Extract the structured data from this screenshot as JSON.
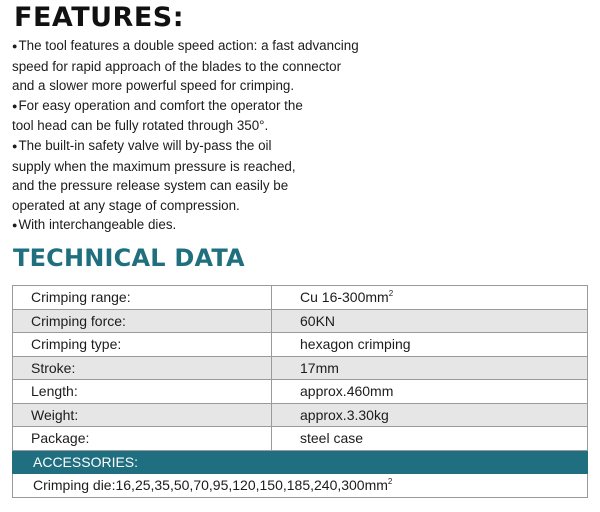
{
  "features": {
    "title": "FEATURES:",
    "bullet_symbol": "●",
    "lines": [
      {
        "bullet": true,
        "text": "The tool features a double speed action: a fast advancing"
      },
      {
        "bullet": false,
        "text": "speed for rapid approach of the blades to the connector"
      },
      {
        "bullet": false,
        "text": "and a slower more powerful speed for crimping."
      },
      {
        "bullet": true,
        "text": "For easy operation and comfort the operator the"
      },
      {
        "bullet": false,
        "text": "tool head can be fully rotated through 350°."
      },
      {
        "bullet": true,
        "text": "The built-in safety valve will by-pass the oil"
      },
      {
        "bullet": false,
        "text": "supply when the maximum pressure is reached,"
      },
      {
        "bullet": false,
        "text": "and the pressure release system can easily be"
      },
      {
        "bullet": false,
        "text": "operated at any stage of compression."
      },
      {
        "bullet": true,
        "text": "With interchangeable dies."
      }
    ]
  },
  "technical_data": {
    "title": "TECHNICAL DATA",
    "rows": [
      {
        "label": "Crimping range:",
        "value": "Cu 16-300mm",
        "sup": "2"
      },
      {
        "label": "Crimping force:",
        "value": "60KN"
      },
      {
        "label": "Crimping type:",
        "value": "hexagon crimping"
      },
      {
        "label": "Stroke:",
        "value": "17mm"
      },
      {
        "label": "Length:",
        "value": "approx.460mm"
      },
      {
        "label": "Weight:",
        "value": "approx.3.30kg"
      },
      {
        "label": "Package:",
        "value": "steel case"
      }
    ]
  },
  "accessories": {
    "header": "ACCESSORIES:",
    "crimping_die": "Crimping die:16,25,35,50,70,95,120,150,185,240,300mm",
    "crimping_die_sup": "2"
  },
  "colors": {
    "accent": "#1f6f80",
    "row_alt": "#e6e6e6",
    "border": "#9a9a9a"
  }
}
